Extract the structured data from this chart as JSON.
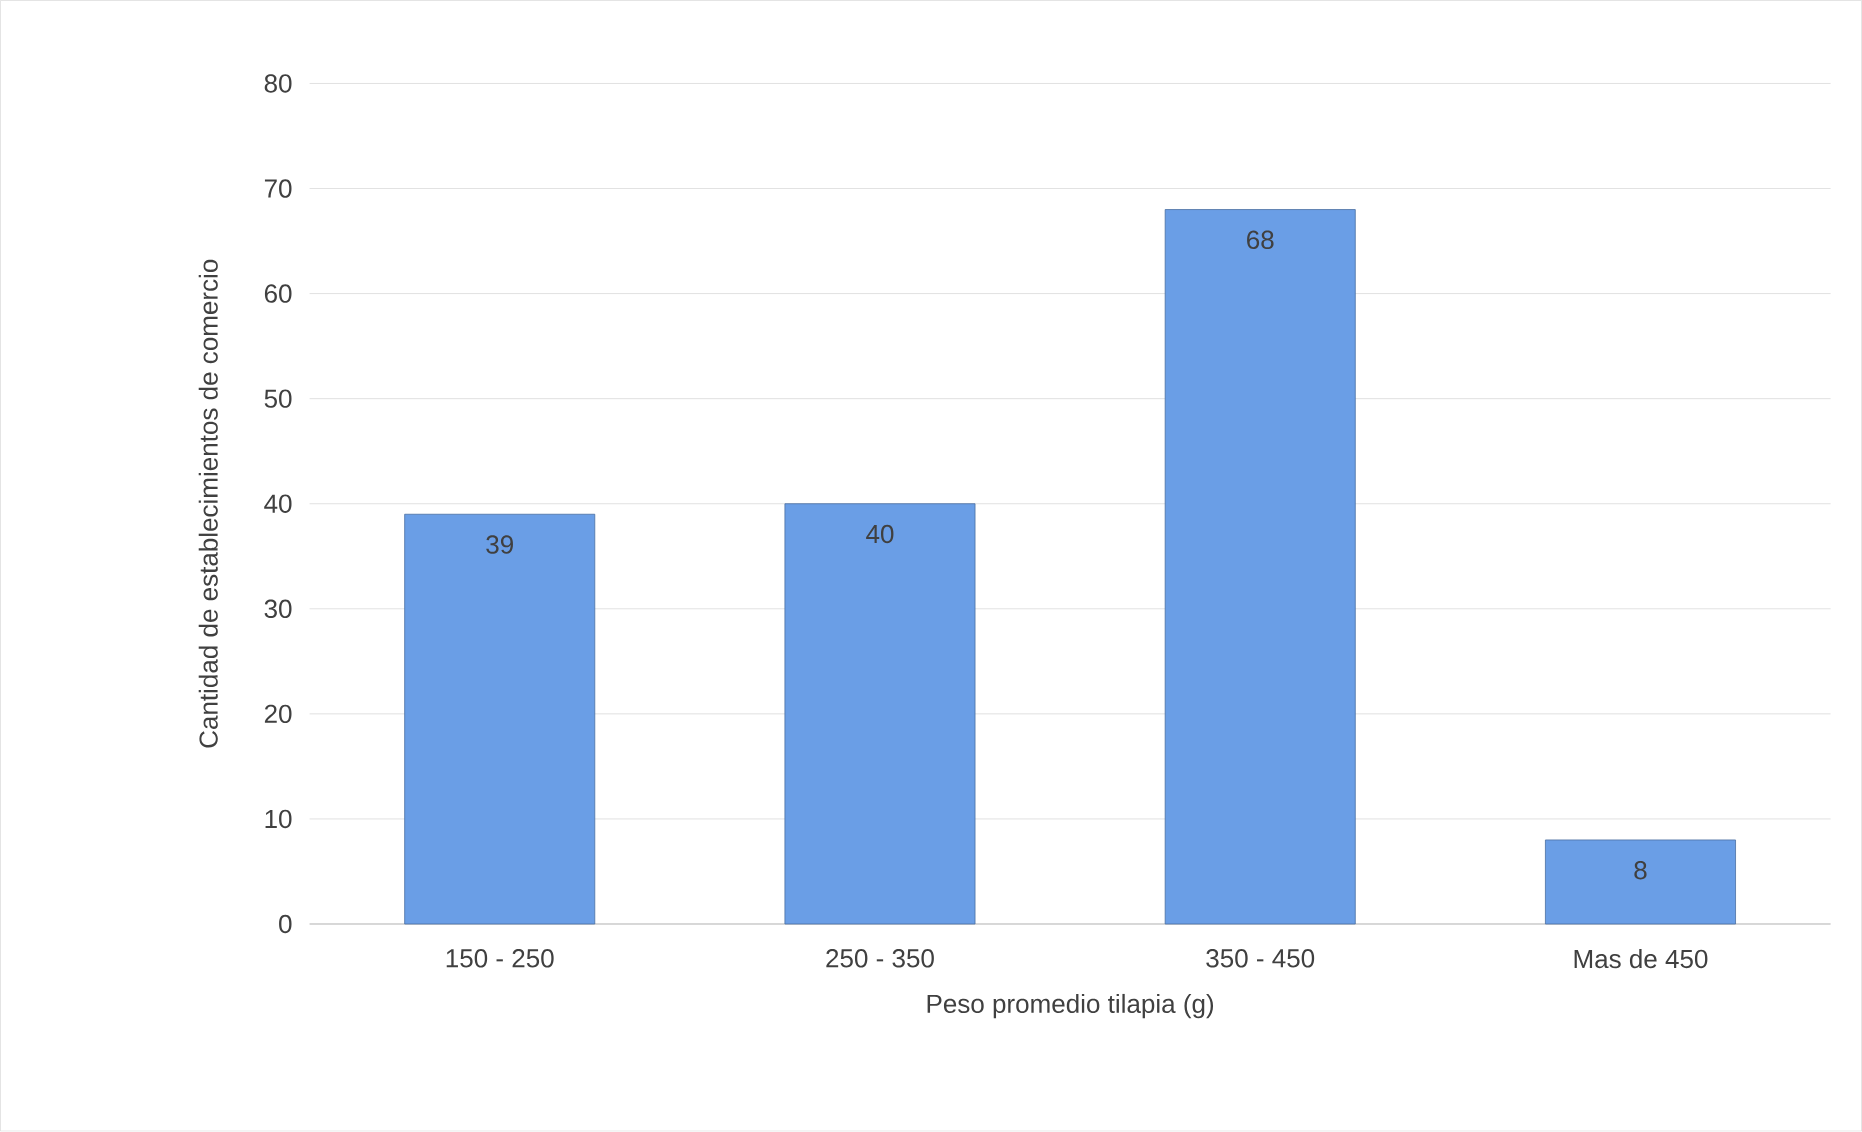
{
  "chart_data": {
    "type": "bar",
    "xlabel": "Peso promedio tilapia (g)",
    "ylabel": "Cantidad de establecimientos de comercio",
    "categories": [
      "150 - 250",
      "250 - 350",
      "350 - 450",
      "Mas de 450"
    ],
    "values": [
      39,
      40,
      68,
      8
    ],
    "color": "#6a9ee6",
    "ylim": [
      0,
      80
    ],
    "yticks": [
      0,
      10,
      20,
      30,
      40,
      50,
      60,
      70,
      80
    ],
    "grid": "y",
    "data_labels": true
  }
}
